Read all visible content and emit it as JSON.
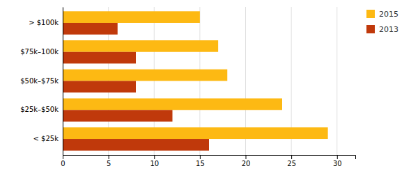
{
  "chart_data": {
    "type": "bar",
    "orientation": "horizontal",
    "categories": [
      "< $25k",
      "$25k–$50k",
      "$50k–$75k",
      "$75k–100k",
      "> $100k"
    ],
    "series": [
      {
        "name": "2015",
        "color": "#FDB913",
        "values": [
          29,
          24,
          18,
          17,
          15
        ]
      },
      {
        "name": "2013",
        "color": "#C0390B",
        "values": [
          16,
          12,
          8,
          8,
          6
        ]
      }
    ],
    "xlim": [
      0,
      32
    ],
    "xticks": [
      0,
      5,
      10,
      15,
      20,
      25,
      30
    ],
    "grid": true,
    "legend": "right"
  }
}
